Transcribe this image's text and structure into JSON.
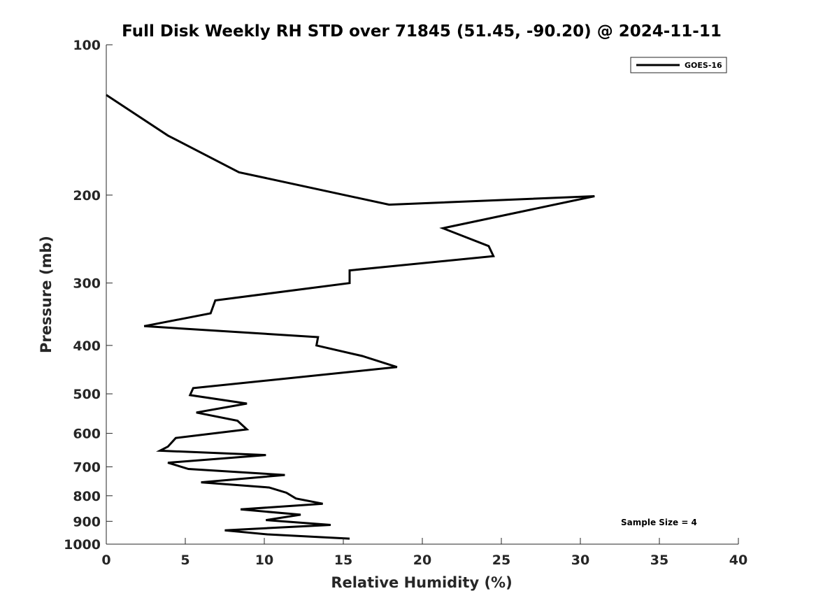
{
  "chart_data": {
    "type": "line",
    "title": "Full Disk Weekly RH STD over 71845 (51.45, -90.20) @ 2024-11-11",
    "xlabel": "Relative Humidity (%)",
    "ylabel": "Pressure (mb)",
    "xlim": [
      0,
      40
    ],
    "ylim": [
      100,
      1000
    ],
    "y_scale": "log",
    "y_reversed": true,
    "grid": false,
    "legend_position": "top-right",
    "x_ticks": [
      "0",
      "5",
      "10",
      "15",
      "20",
      "25",
      "30",
      "35",
      "40"
    ],
    "y_ticks": [
      "100",
      "200",
      "300",
      "400",
      "500",
      "600",
      "700",
      "800",
      "900",
      "1000"
    ],
    "annotation": "Sample Size = 4",
    "series": [
      {
        "name": "GOES-16",
        "color": "#000000",
        "points": [
          [
            0.0,
            126
          ],
          [
            3.9,
            152
          ],
          [
            8.4,
            180
          ],
          [
            17.9,
            209
          ],
          [
            30.9,
            201
          ],
          [
            21.3,
            233
          ],
          [
            24.2,
            253
          ],
          [
            24.5,
            265
          ],
          [
            15.4,
            283
          ],
          [
            15.4,
            300
          ],
          [
            6.9,
            325
          ],
          [
            6.6,
            345
          ],
          [
            2.4,
            366
          ],
          [
            13.4,
            385
          ],
          [
            13.3,
            400
          ],
          [
            16.2,
            420
          ],
          [
            18.4,
            442
          ],
          [
            5.5,
            487
          ],
          [
            5.3,
            503
          ],
          [
            8.9,
            523
          ],
          [
            5.7,
            545
          ],
          [
            8.3,
            566
          ],
          [
            8.9,
            589
          ],
          [
            4.4,
            613
          ],
          [
            3.9,
            638
          ],
          [
            3.4,
            650
          ],
          [
            10.1,
            663
          ],
          [
            3.9,
            687
          ],
          [
            5.2,
            707
          ],
          [
            11.3,
            727
          ],
          [
            6.0,
            752
          ],
          [
            10.3,
            770
          ],
          [
            11.4,
            789
          ],
          [
            12.0,
            810
          ],
          [
            13.7,
            830
          ],
          [
            8.5,
            852
          ],
          [
            12.3,
            873
          ],
          [
            10.1,
            895
          ],
          [
            14.2,
            915
          ],
          [
            7.5,
            938
          ],
          [
            10.2,
            956
          ],
          [
            15.4,
            975
          ]
        ]
      }
    ]
  }
}
